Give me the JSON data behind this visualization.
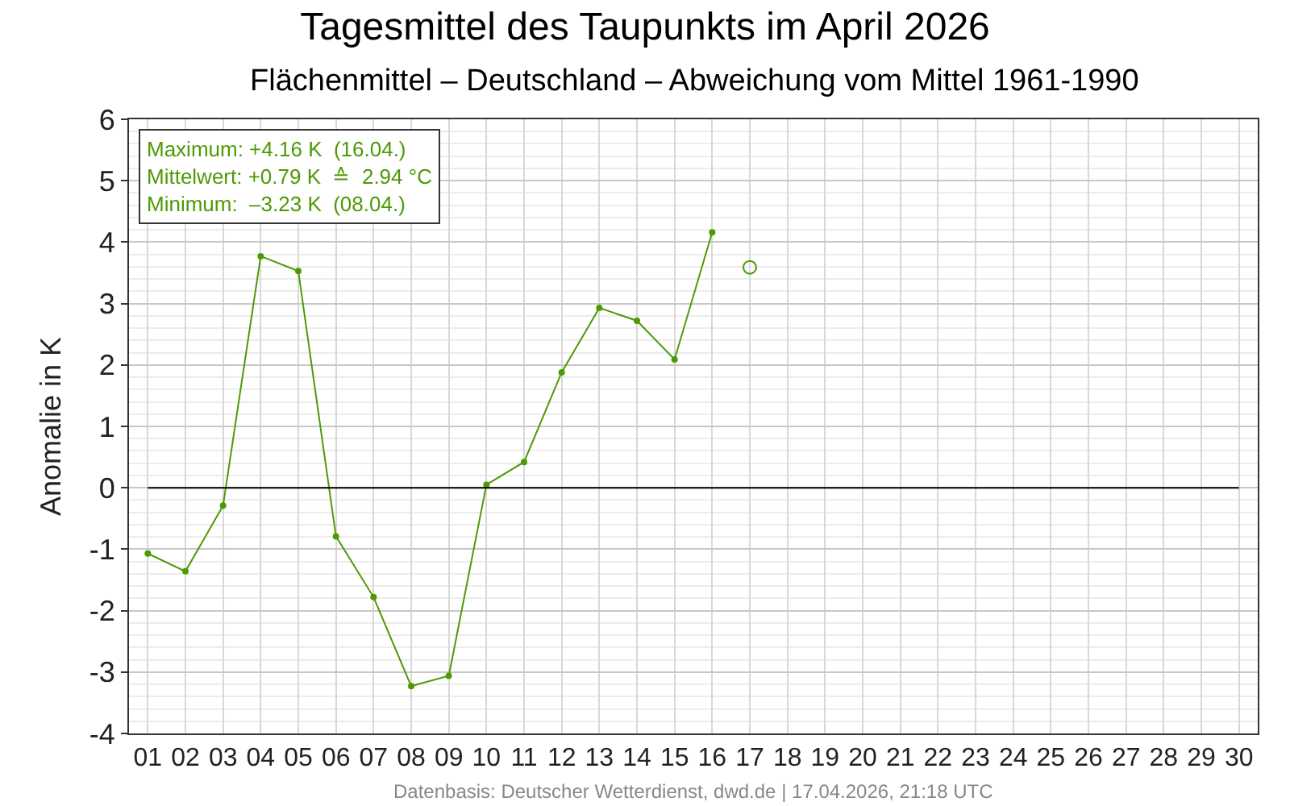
{
  "chart_data": {
    "type": "line",
    "title": "Tagesmittel des Taupunkts im April 2026",
    "subtitle": "Flächenmittel – Deutschland – Abweichung vom Mittel 1961-1990",
    "ylabel": "Anomalie in K",
    "categories": [
      "01",
      "02",
      "03",
      "04",
      "05",
      "06",
      "07",
      "08",
      "09",
      "10",
      "11",
      "12",
      "13",
      "14",
      "15",
      "16",
      "17",
      "18",
      "19",
      "20",
      "21",
      "22",
      "23",
      "24",
      "25",
      "26",
      "27",
      "28",
      "29",
      "30"
    ],
    "series": [
      {
        "type": "line",
        "color": "#4e9a06",
        "values": [
          -1.07,
          -1.36,
          -0.29,
          3.77,
          3.53,
          -0.79,
          -1.78,
          -3.23,
          -3.06,
          0.05,
          0.42,
          1.88,
          2.93,
          2.72,
          2.09,
          4.16,
          null,
          null,
          null,
          null,
          null,
          null,
          null,
          null,
          null,
          null,
          null,
          null,
          null,
          null
        ]
      },
      {
        "type": "scatter",
        "color": "#4e9a06",
        "values": [
          null,
          null,
          null,
          null,
          null,
          null,
          null,
          null,
          null,
          null,
          null,
          null,
          null,
          null,
          null,
          null,
          3.59,
          null,
          null,
          null,
          null,
          null,
          null,
          null,
          null,
          null,
          null,
          null,
          null,
          null
        ]
      }
    ],
    "ylim": [
      -4,
      6
    ],
    "yticks": [
      -4,
      -3,
      -2,
      -1,
      0,
      1,
      2,
      3,
      4,
      5,
      6
    ],
    "grid": true,
    "legend": false,
    "marker": "circle",
    "ref_lines": [
      {
        "axis": "y",
        "value": 0,
        "color": "#000000"
      }
    ],
    "annotations": [
      "Maximum: +4.16 K  (16.04.)",
      "Mittelwert: +0.79 K  ≙  2.94 °C",
      "Minimum:  –3.23 K  (08.04.)",
      "Datenbasis: Deutscher Wetterdienst, dwd.de | 17.04.2026, 21:18 UTC"
    ]
  }
}
